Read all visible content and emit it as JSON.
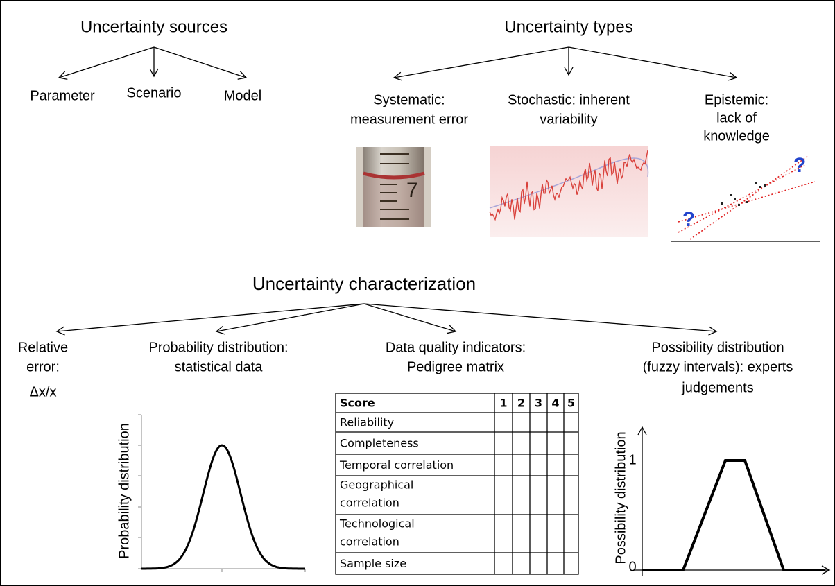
{
  "sources": {
    "title": "Uncertainty sources",
    "items": [
      "Parameter",
      "Scenario",
      "Model"
    ]
  },
  "types": {
    "title": "Uncertainty types",
    "items": [
      [
        "Systematic:",
        "measurement error"
      ],
      [
        "Stochastic: inherent",
        "variability"
      ],
      [
        "Epistemic:",
        "lack of",
        "knowledge"
      ]
    ],
    "cylinder_mark": "7",
    "question_mark": "?"
  },
  "characterization": {
    "title": "Uncertainty characterization",
    "items": [
      [
        "Relative",
        "error:",
        "Δx/x"
      ],
      [
        "Probability distribution:",
        "statistical data"
      ],
      [
        "Data quality indicators:",
        "Pedigree matrix"
      ],
      [
        "Possibility distribution",
        "(fuzzy intervals): experts",
        "judgements"
      ]
    ]
  },
  "pedigree_table": {
    "header": [
      "Score",
      "1",
      "2",
      "3",
      "4",
      "5"
    ],
    "rows": [
      [
        "Reliability"
      ],
      [
        "Completeness"
      ],
      [
        "Temporal correlation"
      ],
      [
        "Geographical",
        "correlation"
      ],
      [
        "Technological",
        "correlation"
      ],
      [
        "Sample size"
      ]
    ]
  },
  "probability_plot": {
    "y_label": "Probability distribution"
  },
  "possibility_plot": {
    "y_label": "Possibility distribution",
    "ticks": [
      "1",
      "0"
    ]
  }
}
